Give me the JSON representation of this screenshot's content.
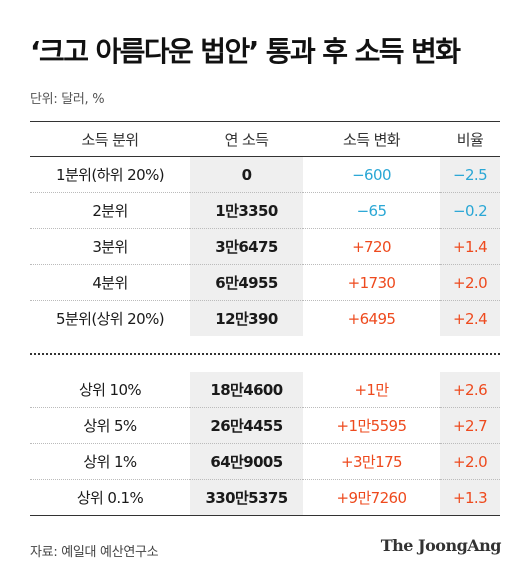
{
  "title": "‘크고 아름다운 법안’ 통과 후 소득 변화",
  "unit": "단위: 달러, %",
  "columns": [
    "소득 분위",
    "연 소득",
    "소득 변화",
    "비율"
  ],
  "rows_quintile": [
    {
      "group": "1분위(하위 20%)",
      "income": "0",
      "change": "−600",
      "rate": "−2.5",
      "sign": "neg"
    },
    {
      "group": "2분위",
      "income": "1만3350",
      "change": "−65",
      "rate": "−0.2",
      "sign": "neg"
    },
    {
      "group": "3분위",
      "income": "3만6475",
      "change": "+720",
      "rate": "+1.4",
      "sign": "pos"
    },
    {
      "group": "4분위",
      "income": "6만4955",
      "change": "+1730",
      "rate": "+2.0",
      "sign": "pos"
    },
    {
      "group": "5분위(상위 20%)",
      "income": "12만390",
      "change": "+6495",
      "rate": "+2.4",
      "sign": "pos"
    }
  ],
  "rows_top": [
    {
      "group": "상위 10%",
      "income": "18만4600",
      "change": "+1만",
      "rate": "+2.6",
      "sign": "pos"
    },
    {
      "group": "상위 5%",
      "income": "26만4455",
      "change": "+1만5595",
      "rate": "+2.7",
      "sign": "pos"
    },
    {
      "group": "상위 1%",
      "income": "64만9005",
      "change": "+3만175",
      "rate": "+2.0",
      "sign": "pos"
    },
    {
      "group": "상위 0.1%",
      "income": "330만5375",
      "change": "+9만7260",
      "rate": "+1.3",
      "sign": "pos"
    }
  ],
  "colors": {
    "negative": "#2aa7d5",
    "positive": "#ee4a1e",
    "shade": "#efefef"
  },
  "source": "자료: 예일대 예산연구소",
  "logo": "The JoongAng"
}
